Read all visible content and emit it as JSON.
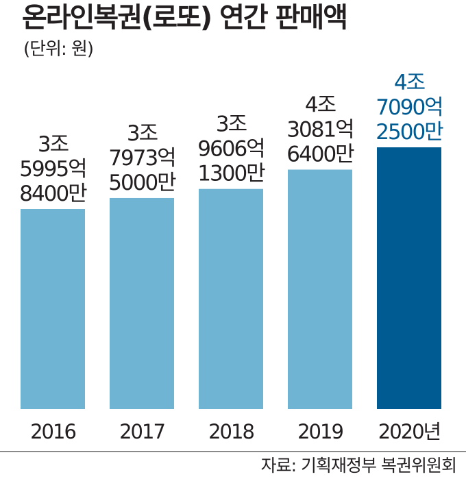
{
  "title": "온라인복권(로또) 연간 판매액",
  "subtitle": "(단위: 원)",
  "source": "자료: 기획재정부 복권위원회",
  "colors": {
    "normal": "#6fb5d3",
    "highlight": "#005b93",
    "text": "#231f20",
    "highlight_text": "#005b93"
  },
  "chart_data": {
    "type": "bar",
    "categories": [
      "2016",
      "2017",
      "2018",
      "2019",
      "2020년"
    ],
    "values": [
      3599584000000,
      3797350000000,
      3960613000000,
      4308164000000,
      4709025000000
    ],
    "value_labels": [
      [
        "3조",
        "5995억",
        "8400만"
      ],
      [
        "3조",
        "7973억",
        "5000만"
      ],
      [
        "3조",
        "9606억",
        "1300만"
      ],
      [
        "4조",
        "3081억",
        "6400만"
      ],
      [
        "4조",
        "7090억",
        "2500만"
      ]
    ],
    "highlight_index": 4,
    "baseline_value": 0,
    "title": "온라인복권(로또) 연간 판매액",
    "xlabel": "",
    "ylabel": "",
    "grid": false,
    "legend": "none"
  }
}
